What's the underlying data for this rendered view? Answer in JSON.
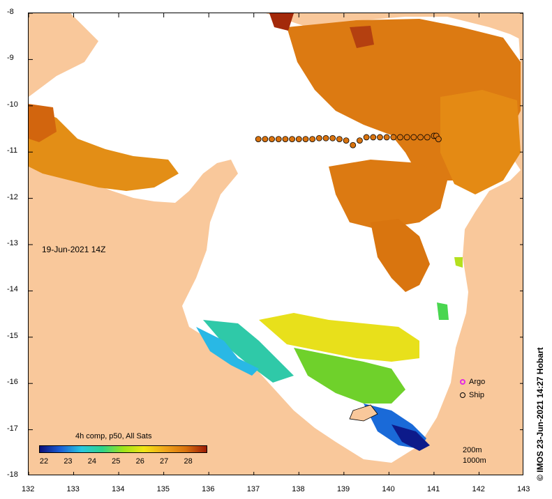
{
  "map": {
    "date_label": "19-Jun-2021 14Z",
    "credit": "© IMOS 23-Jun-2021 14:27 Hobart",
    "x_ticks": [
      "132",
      "133",
      "134",
      "135",
      "136",
      "137",
      "138",
      "139",
      "140",
      "141",
      "142",
      "143"
    ],
    "y_ticks": [
      "-8",
      "-9",
      "-10",
      "-11",
      "-12",
      "-13",
      "-14",
      "-15",
      "-16",
      "-17",
      "-18"
    ],
    "lon_range": [
      132,
      143
    ],
    "lat_range": [
      -8,
      -18
    ],
    "colors": {
      "land": "#f9c89b",
      "no_data": "#ffffff",
      "sea_warm": "#d9730f"
    }
  },
  "colorbar": {
    "title": "4h comp, p50, All Sats",
    "labels": [
      "22",
      "23",
      "24",
      "25",
      "26",
      "27",
      "28"
    ],
    "range": [
      21.8,
      28.8
    ],
    "colors": [
      "#0b0f7a",
      "#1a5fd6",
      "#29c7e0",
      "#2fd38a",
      "#9ee41a",
      "#f2e516",
      "#f0a51b",
      "#d9730f",
      "#9c1b05"
    ]
  },
  "legend": [
    {
      "label": "Argo",
      "icon": "argo-circle-magenta",
      "color": "#e22be2"
    },
    {
      "label": "Ship",
      "icon": "ship-circle-black",
      "color": "#000000"
    }
  ],
  "contour_legend": [
    "200m",
    "1000m"
  ],
  "ship_track": {
    "points": [
      [
        137.1,
        -10.72
      ],
      [
        137.25,
        -10.72
      ],
      [
        137.4,
        -10.72
      ],
      [
        137.55,
        -10.72
      ],
      [
        137.7,
        -10.72
      ],
      [
        137.85,
        -10.72
      ],
      [
        138.0,
        -10.72
      ],
      [
        138.15,
        -10.72
      ],
      [
        138.3,
        -10.72
      ],
      [
        138.45,
        -10.7
      ],
      [
        138.6,
        -10.7
      ],
      [
        138.75,
        -10.7
      ],
      [
        138.9,
        -10.72
      ],
      [
        139.05,
        -10.75
      ],
      [
        139.2,
        -10.85
      ],
      [
        139.35,
        -10.75
      ],
      [
        139.5,
        -10.68
      ],
      [
        139.65,
        -10.68
      ],
      [
        139.8,
        -10.68
      ],
      [
        139.95,
        -10.68
      ],
      [
        140.1,
        -10.68
      ],
      [
        140.25,
        -10.68
      ],
      [
        140.4,
        -10.68
      ],
      [
        140.55,
        -10.68
      ],
      [
        140.7,
        -10.68
      ],
      [
        140.85,
        -10.68
      ],
      [
        141.0,
        -10.65
      ],
      [
        141.05,
        -10.65
      ],
      [
        141.1,
        -10.72
      ]
    ]
  }
}
